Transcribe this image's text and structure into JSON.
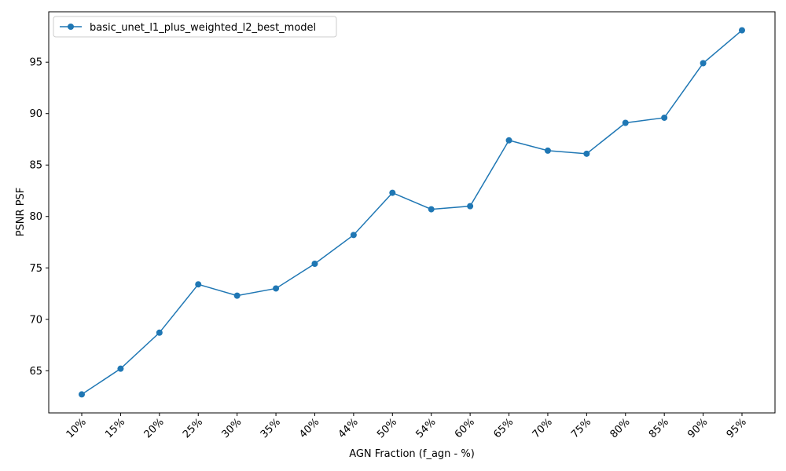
{
  "chart_data": {
    "type": "line",
    "categories": [
      "10%",
      "15%",
      "20%",
      "25%",
      "30%",
      "35%",
      "40%",
      "44%",
      "50%",
      "54%",
      "60%",
      "65%",
      "70%",
      "75%",
      "80%",
      "85%",
      "90%",
      "95%"
    ],
    "series": [
      {
        "name": "basic_unet_l1_plus_weighted_l2_best_model",
        "values": [
          62.7,
          65.2,
          68.7,
          73.4,
          72.3,
          73.0,
          75.4,
          78.2,
          82.3,
          80.7,
          81.0,
          87.4,
          86.4,
          86.1,
          89.1,
          89.6,
          94.9,
          98.1
        ],
        "color": "#1f77b4",
        "marker": "circle"
      }
    ],
    "xlabel": "AGN Fraction (f_agn - %)",
    "ylabel": "PSNR PSF",
    "ylim": [
      60.9,
      99.9
    ],
    "yticks": [
      65,
      70,
      75,
      80,
      85,
      90,
      95
    ],
    "grid": false,
    "legend": "top-left"
  }
}
